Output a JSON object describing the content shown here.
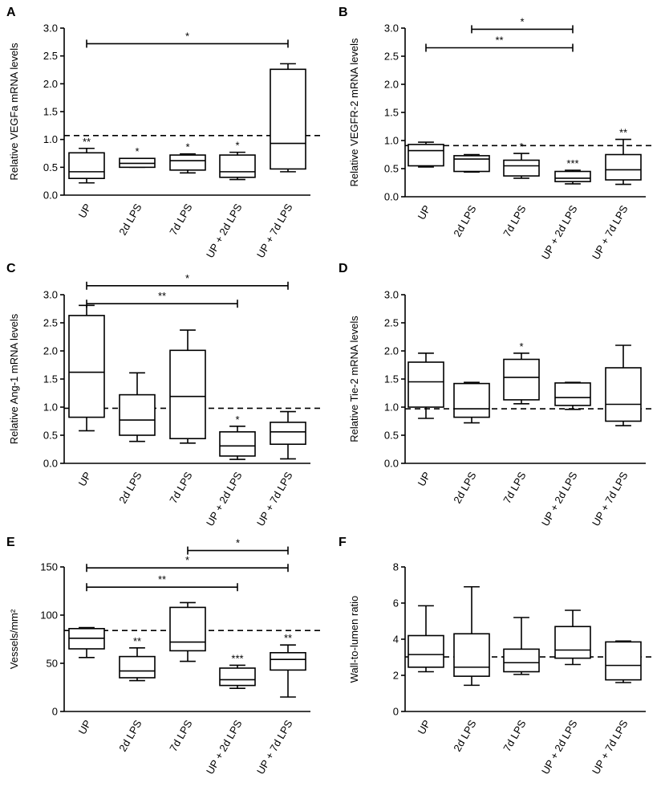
{
  "chart_data": [
    {
      "type": "box",
      "panel_label": "A",
      "ylabel": "Relative VEGFa mRNA levels",
      "ylim": [
        0,
        3.0
      ],
      "yticks": [
        "0.0",
        "0.5",
        "1.0",
        "1.5",
        "2.0",
        "2.5",
        "3.0"
      ],
      "ytick_values": [
        0,
        0.5,
        1.0,
        1.5,
        2.0,
        2.5,
        3.0
      ],
      "categories": [
        "UP",
        "2d LPS",
        "7d LPS",
        "UP + 2d LPS",
        "UP + 7d LPS"
      ],
      "reference_line": 1.07,
      "boxes": [
        {
          "min": 0.22,
          "q1": 0.3,
          "median": 0.42,
          "q3": 0.76,
          "max": 0.84,
          "sig": "**"
        },
        {
          "min": 0.5,
          "q1": 0.5,
          "median": 0.57,
          "q3": 0.66,
          "max": 0.66,
          "sig": "*"
        },
        {
          "min": 0.4,
          "q1": 0.45,
          "median": 0.62,
          "q3": 0.72,
          "max": 0.74,
          "sig": "*"
        },
        {
          "min": 0.28,
          "q1": 0.32,
          "median": 0.42,
          "q3": 0.72,
          "max": 0.77,
          "sig": "*"
        },
        {
          "min": 0.42,
          "q1": 0.47,
          "median": 0.93,
          "q3": 2.26,
          "max": 2.36,
          "sig": ""
        }
      ],
      "brackets": [
        {
          "from": 0,
          "to": 4,
          "label": "*",
          "y": 2.72
        }
      ]
    },
    {
      "type": "box",
      "panel_label": "B",
      "ylabel": "Relative VEGFR-2 mRNA levels",
      "ylim": [
        0,
        3.0
      ],
      "yticks": [
        "0.0",
        "0.5",
        "1.0",
        "1.5",
        "2.0",
        "2.5",
        "3.0"
      ],
      "ytick_values": [
        0,
        0.5,
        1.0,
        1.5,
        2.0,
        2.5,
        3.0
      ],
      "categories": [
        "UP",
        "2d LPS",
        "7d LPS",
        "UP + 2d LPS",
        "UP + 7d LPS"
      ],
      "reference_line": 0.91,
      "boxes": [
        {
          "min": 0.53,
          "q1": 0.55,
          "median": 0.82,
          "q3": 0.93,
          "max": 0.97,
          "sig": ""
        },
        {
          "min": 0.44,
          "q1": 0.45,
          "median": 0.67,
          "q3": 0.73,
          "max": 0.75,
          "sig": ""
        },
        {
          "min": 0.33,
          "q1": 0.37,
          "median": 0.55,
          "q3": 0.65,
          "max": 0.77,
          "sig": "*"
        },
        {
          "min": 0.23,
          "q1": 0.27,
          "median": 0.33,
          "q3": 0.45,
          "max": 0.47,
          "sig": "***"
        },
        {
          "min": 0.22,
          "q1": 0.3,
          "median": 0.48,
          "q3": 0.75,
          "max": 1.02,
          "sig": "**"
        }
      ],
      "brackets": [
        {
          "from": 1,
          "to": 3,
          "label": "*",
          "y": 2.98
        },
        {
          "from": 0,
          "to": 3,
          "label": "**",
          "y": 2.65
        }
      ]
    },
    {
      "type": "box",
      "panel_label": "C",
      "ylabel": "Relative Ang-1 mRNA levels",
      "ylim": [
        0,
        3.0
      ],
      "yticks": [
        "0.0",
        "0.5",
        "1.0",
        "1.5",
        "2.0",
        "2.5",
        "3.0"
      ],
      "ytick_values": [
        0,
        0.5,
        1.0,
        1.5,
        2.0,
        2.5,
        3.0
      ],
      "categories": [
        "UP",
        "2d LPS",
        "7d LPS",
        "UP + 2d LPS",
        "UP + 7d LPS"
      ],
      "reference_line": 0.98,
      "boxes": [
        {
          "min": 0.58,
          "q1": 0.82,
          "median": 1.62,
          "q3": 2.63,
          "max": 2.81,
          "sig": ""
        },
        {
          "min": 0.39,
          "q1": 0.5,
          "median": 0.77,
          "q3": 1.22,
          "max": 1.61,
          "sig": ""
        },
        {
          "min": 0.36,
          "q1": 0.44,
          "median": 1.19,
          "q3": 2.01,
          "max": 2.37,
          "sig": ""
        },
        {
          "min": 0.07,
          "q1": 0.13,
          "median": 0.31,
          "q3": 0.56,
          "max": 0.66,
          "sig": "*"
        },
        {
          "min": 0.08,
          "q1": 0.34,
          "median": 0.56,
          "q3": 0.73,
          "max": 0.92,
          "sig": ""
        }
      ],
      "brackets": [
        {
          "from": 0,
          "to": 4,
          "label": "*",
          "y": 3.16
        },
        {
          "from": 0,
          "to": 3,
          "label": "**",
          "y": 2.84
        }
      ]
    },
    {
      "type": "box",
      "panel_label": "D",
      "ylabel": "Relative Tie-2 mRNA levels",
      "ylim": [
        0,
        3.0
      ],
      "yticks": [
        "0.0",
        "0.5",
        "1.0",
        "1.5",
        "2.0",
        "2.5",
        "3.0"
      ],
      "ytick_values": [
        0,
        0.5,
        1.0,
        1.5,
        2.0,
        2.5,
        3.0
      ],
      "categories": [
        "UP",
        "2d LPS",
        "7d LPS",
        "UP + 2d LPS",
        "UP + 7d LPS"
      ],
      "reference_line": 0.97,
      "boxes": [
        {
          "min": 0.8,
          "q1": 1.0,
          "median": 1.45,
          "q3": 1.8,
          "max": 1.96,
          "sig": ""
        },
        {
          "min": 0.72,
          "q1": 0.82,
          "median": 0.97,
          "q3": 1.42,
          "max": 1.44,
          "sig": ""
        },
        {
          "min": 1.06,
          "q1": 1.13,
          "median": 1.53,
          "q3": 1.85,
          "max": 1.96,
          "sig": "*"
        },
        {
          "min": 0.96,
          "q1": 1.03,
          "median": 1.17,
          "q3": 1.43,
          "max": 1.44,
          "sig": ""
        },
        {
          "min": 0.67,
          "q1": 0.75,
          "median": 1.05,
          "q3": 1.7,
          "max": 2.1,
          "sig": ""
        }
      ],
      "brackets": []
    },
    {
      "type": "box",
      "panel_label": "E",
      "ylabel": "Vessels/mm²",
      "ylim": [
        0,
        150
      ],
      "yticks": [
        "0",
        "50",
        "100",
        "150"
      ],
      "ytick_values": [
        0,
        50,
        100,
        150
      ],
      "categories": [
        "UP",
        "2d LPS",
        "7d LPS",
        "UP + 2d LPS",
        "UP + 7d LPS"
      ],
      "reference_line": 84,
      "boxes": [
        {
          "min": 56,
          "q1": 65,
          "median": 76,
          "q3": 86,
          "max": 87,
          "sig": ""
        },
        {
          "min": 32,
          "q1": 35,
          "median": 42,
          "q3": 57,
          "max": 66,
          "sig": "**"
        },
        {
          "min": 52,
          "q1": 63,
          "median": 72,
          "q3": 108,
          "max": 113,
          "sig": ""
        },
        {
          "min": 24,
          "q1": 27,
          "median": 33,
          "q3": 45,
          "max": 48,
          "sig": "***"
        },
        {
          "min": 15,
          "q1": 43,
          "median": 54,
          "q3": 61,
          "max": 69,
          "sig": "**"
        }
      ],
      "brackets": [
        {
          "from": 2,
          "to": 4,
          "label": "*",
          "y": 167
        },
        {
          "from": 0,
          "to": 4,
          "label": "*",
          "y": 149
        },
        {
          "from": 0,
          "to": 3,
          "label": "**",
          "y": 129
        }
      ]
    },
    {
      "type": "box",
      "panel_label": "F",
      "ylabel": "Wall-to-lumen ratio",
      "ylim": [
        0,
        8
      ],
      "yticks": [
        "0",
        "2",
        "4",
        "6",
        "8"
      ],
      "ytick_values": [
        0,
        2,
        4,
        6,
        8
      ],
      "categories": [
        "UP",
        "2d LPS",
        "7d LPS",
        "UP + 2d LPS",
        "UP + 7d LPS"
      ],
      "reference_line": 3.02,
      "boxes": [
        {
          "min": 2.2,
          "q1": 2.45,
          "median": 3.15,
          "q3": 4.2,
          "max": 5.85,
          "sig": ""
        },
        {
          "min": 1.45,
          "q1": 1.95,
          "median": 2.45,
          "q3": 4.3,
          "max": 6.9,
          "sig": ""
        },
        {
          "min": 2.05,
          "q1": 2.2,
          "median": 2.7,
          "q3": 3.45,
          "max": 5.2,
          "sig": ""
        },
        {
          "min": 2.6,
          "q1": 2.95,
          "median": 3.4,
          "q3": 4.7,
          "max": 5.6,
          "sig": ""
        },
        {
          "min": 1.6,
          "q1": 1.75,
          "median": 2.55,
          "q3": 3.85,
          "max": 3.9,
          "sig": ""
        }
      ],
      "brackets": []
    }
  ]
}
